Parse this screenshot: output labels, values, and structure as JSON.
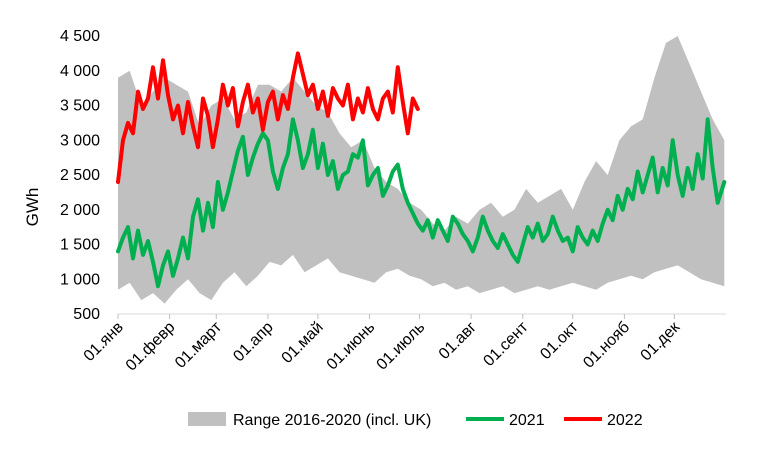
{
  "chart_data": {
    "type": "line",
    "title": "",
    "xlabel": "",
    "ylabel": "GWh",
    "ylim": [
      500,
      4500
    ],
    "y_ticks": [
      500,
      1000,
      1500,
      2000,
      2500,
      3000,
      3500,
      4000,
      4500
    ],
    "y_tick_labels": [
      "500",
      "1 000",
      "1 500",
      "2 000",
      "2 500",
      "3 000",
      "3 500",
      "4 000",
      "4 500"
    ],
    "x_ticks": [
      1,
      32,
      60,
      91,
      121,
      152,
      182,
      213,
      244,
      274,
      305,
      335
    ],
    "x_tick_labels": [
      "01.янв",
      "01.февр",
      "01.март",
      "01.апр",
      "01.май",
      "01.июнь",
      "01.июль",
      "01.авг",
      "01.сент",
      "01.окт",
      "01.нояб",
      "01.дек"
    ],
    "x_range": [
      1,
      366
    ],
    "grid": false,
    "legend_position": "bottom",
    "colors": {
      "range": "#c0c0c0",
      "s2021": "#00b050",
      "s2022": "#ff0000"
    },
    "series": [
      {
        "name": "Range 2016-2020 (incl. UK)",
        "kind": "area-band",
        "x": [
          1,
          8,
          15,
          22,
          29,
          36,
          43,
          50,
          57,
          64,
          71,
          78,
          85,
          92,
          99,
          106,
          113,
          120,
          127,
          134,
          141,
          148,
          155,
          162,
          169,
          176,
          183,
          190,
          197,
          204,
          211,
          218,
          225,
          232,
          239,
          246,
          253,
          260,
          267,
          274,
          281,
          288,
          295,
          302,
          309,
          316,
          323,
          330,
          337,
          344,
          351,
          358,
          365
        ],
        "low": [
          850,
          950,
          700,
          800,
          650,
          850,
          1000,
          800,
          700,
          950,
          1100,
          900,
          1050,
          1250,
          1200,
          1350,
          1100,
          1200,
          1300,
          1100,
          1050,
          1000,
          950,
          1100,
          1150,
          1050,
          1000,
          900,
          950,
          850,
          900,
          800,
          850,
          900,
          800,
          850,
          900,
          850,
          900,
          950,
          900,
          850,
          950,
          1000,
          1050,
          1000,
          1100,
          1150,
          1200,
          1100,
          1000,
          950,
          900
        ],
        "high": [
          3900,
          4000,
          3500,
          3700,
          3900,
          3800,
          3700,
          3200,
          3500,
          3600,
          3300,
          3400,
          3800,
          3800,
          3700,
          3900,
          3700,
          3500,
          3400,
          3100,
          2900,
          3000,
          2600,
          2400,
          2300,
          2100,
          2000,
          1800,
          1700,
          1900,
          1800,
          2000,
          2100,
          1900,
          2000,
          2300,
          2100,
          2200,
          2300,
          2000,
          2400,
          2700,
          2500,
          3000,
          3200,
          3300,
          3900,
          4400,
          4500,
          4100,
          3700,
          3300,
          3000
        ]
      },
      {
        "name": "2021",
        "x": [
          1,
          4,
          7,
          10,
          13,
          16,
          19,
          22,
          25,
          28,
          31,
          34,
          37,
          40,
          43,
          46,
          49,
          52,
          55,
          58,
          61,
          64,
          67,
          70,
          73,
          76,
          79,
          82,
          85,
          88,
          91,
          94,
          97,
          100,
          103,
          106,
          109,
          112,
          115,
          118,
          121,
          124,
          127,
          130,
          133,
          136,
          139,
          142,
          145,
          148,
          151,
          154,
          157,
          160,
          163,
          166,
          169,
          172,
          175,
          178,
          181,
          184,
          187,
          190,
          193,
          196,
          199,
          202,
          205,
          208,
          211,
          214,
          217,
          220,
          223,
          226,
          229,
          232,
          235,
          238,
          241,
          244,
          247,
          250,
          253,
          256,
          259,
          262,
          265,
          268,
          271,
          274,
          277,
          280,
          283,
          286,
          289,
          292,
          295,
          298,
          301,
          304,
          307,
          310,
          313,
          316,
          319,
          322,
          325,
          328,
          331,
          334,
          337,
          340,
          343,
          346,
          349,
          352,
          355,
          358,
          361,
          365
        ],
        "values": [
          1400,
          1600,
          1750,
          1300,
          1700,
          1350,
          1550,
          1250,
          900,
          1200,
          1400,
          1050,
          1300,
          1600,
          1300,
          1900,
          2150,
          1700,
          2100,
          1750,
          2400,
          2000,
          2250,
          2550,
          2850,
          3050,
          2500,
          2750,
          2950,
          3100,
          3000,
          2550,
          2300,
          2600,
          2800,
          3300,
          3000,
          2600,
          2800,
          3150,
          2600,
          2950,
          2500,
          2700,
          2300,
          2500,
          2550,
          2800,
          2750,
          3000,
          2350,
          2500,
          2600,
          2200,
          2350,
          2550,
          2650,
          2300,
          2100,
          1950,
          1800,
          1700,
          1850,
          1600,
          1850,
          1700,
          1550,
          1900,
          1800,
          1650,
          1550,
          1400,
          1600,
          1900,
          1700,
          1550,
          1450,
          1650,
          1500,
          1350,
          1250,
          1500,
          1750,
          1600,
          1800,
          1550,
          1650,
          1900,
          1700,
          1550,
          1600,
          1400,
          1750,
          1600,
          1500,
          1700,
          1550,
          1800,
          2000,
          1850,
          2200,
          2000,
          2300,
          2150,
          2550,
          2250,
          2500,
          2750,
          2250,
          2600,
          2350,
          3000,
          2500,
          2200,
          2600,
          2300,
          2800,
          2450,
          3300,
          2600,
          2100,
          2400
        ]
      },
      {
        "name": "2022",
        "x": [
          1,
          4,
          7,
          10,
          13,
          16,
          19,
          22,
          25,
          28,
          31,
          34,
          37,
          40,
          43,
          46,
          49,
          52,
          55,
          58,
          61,
          64,
          67,
          70,
          73,
          76,
          79,
          82,
          85,
          88,
          91,
          94,
          97,
          100,
          103,
          106,
          109,
          112,
          115,
          118,
          121,
          124,
          127,
          130,
          133,
          136,
          139,
          142,
          145,
          148,
          151,
          154,
          157,
          160,
          163,
          166,
          169,
          172,
          175,
          178,
          181
        ],
        "values": [
          2400,
          3000,
          3250,
          3100,
          3700,
          3450,
          3600,
          4050,
          3600,
          4150,
          3650,
          3300,
          3500,
          3100,
          3550,
          3200,
          2900,
          3600,
          3350,
          2900,
          3300,
          3800,
          3500,
          3750,
          3200,
          3550,
          3800,
          3400,
          3600,
          3150,
          3550,
          3700,
          3300,
          3650,
          3450,
          3900,
          4250,
          3950,
          3650,
          3800,
          3450,
          3700,
          3350,
          3750,
          3600,
          3500,
          3800,
          3300,
          3600,
          3400,
          3750,
          3450,
          3300,
          3600,
          3700,
          3400,
          4050,
          3550,
          3100,
          3600,
          3450
        ]
      }
    ]
  }
}
